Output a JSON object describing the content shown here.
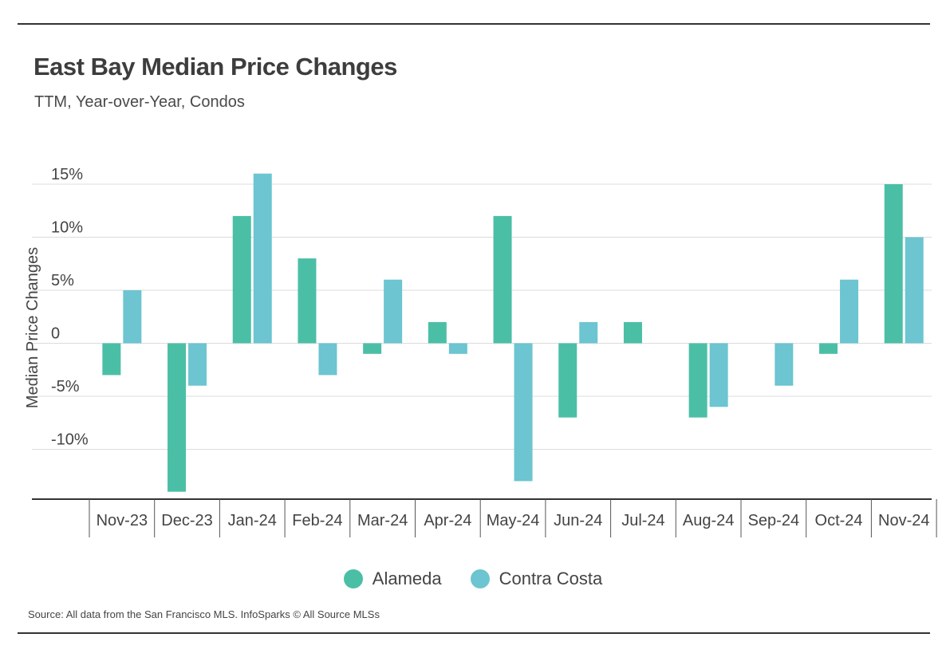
{
  "header": {
    "title": "East Bay Median Price Changes",
    "subtitle": "TTM, Year-over-Year, Condos"
  },
  "footer": {
    "source": "Source:  All data from the San Francisco MLS. InfoSparks © All Source MLSs"
  },
  "colors": {
    "alameda": "#4bbfa6",
    "contra_costa": "#6cc5d0",
    "grid": "#dcdcdc",
    "axis": "#333333",
    "text": "#444444"
  },
  "chart_data": {
    "type": "bar",
    "ylabel": "Median Price Changes",
    "xlabel": "",
    "ylim": [
      -15,
      17
    ],
    "yticks": [
      {
        "value": 15,
        "label": "15%"
      },
      {
        "value": 10,
        "label": "10%"
      },
      {
        "value": 5,
        "label": "5%"
      },
      {
        "value": 0,
        "label": "0"
      },
      {
        "value": -5,
        "label": "-5%"
      },
      {
        "value": -10,
        "label": "-10%"
      }
    ],
    "grid": true,
    "legend_position": "bottom",
    "categories": [
      "Nov-23",
      "Dec-23",
      "Jan-24",
      "Feb-24",
      "Mar-24",
      "Apr-24",
      "May-24",
      "Jun-24",
      "Jul-24",
      "Aug-24",
      "Sep-24",
      "Oct-24",
      "Nov-24"
    ],
    "series": [
      {
        "name": "Alameda",
        "values": [
          -3,
          -14,
          12,
          8,
          -1,
          2,
          12,
          -7,
          2,
          -7,
          0,
          -1,
          15
        ]
      },
      {
        "name": "Contra Costa",
        "values": [
          5,
          -4,
          16,
          -3,
          6,
          -1,
          -13,
          2,
          0,
          -6,
          -4,
          6,
          10
        ]
      }
    ]
  }
}
